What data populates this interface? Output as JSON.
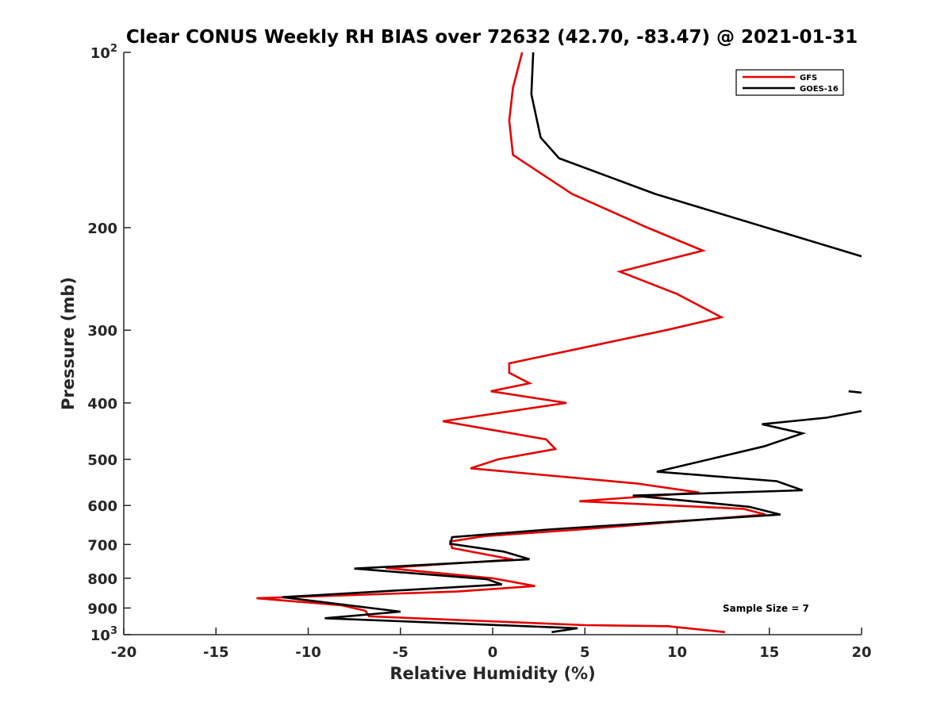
{
  "chart_data": {
    "type": "line",
    "title": "Clear CONUS Weekly RH BIAS over 72632 (42.70, -83.47) @ 2021-01-31",
    "xlabel": "Relative Humidity (%)",
    "ylabel": "Pressure (mb)",
    "xlim": [
      -20,
      20
    ],
    "ylim": [
      100,
      1000
    ],
    "y_scale": "log",
    "y_reversed": true,
    "x_ticks": [
      "-20",
      "-15",
      "-10",
      "-5",
      "0",
      "5",
      "10",
      "15",
      "20"
    ],
    "y_ticks": [
      {
        "value": 100,
        "base": "10",
        "exp": "2"
      },
      {
        "value": 200,
        "label": "200"
      },
      {
        "value": 300,
        "label": "300"
      },
      {
        "value": 400,
        "label": "400"
      },
      {
        "value": 500,
        "label": "500"
      },
      {
        "value": 600,
        "label": "600"
      },
      {
        "value": 700,
        "label": "700"
      },
      {
        "value": 800,
        "label": "800"
      },
      {
        "value": 900,
        "label": "900"
      },
      {
        "value": 1000,
        "base": "10",
        "exp": "3"
      }
    ],
    "grid": false,
    "legend_position": "top-right",
    "annotation": "Sample Size = 7",
    "series": [
      {
        "name": "GFS",
        "color": "#e60000",
        "points": [
          [
            1.6,
            100
          ],
          [
            1.1,
            115
          ],
          [
            0.9,
            131
          ],
          [
            1.1,
            150
          ],
          [
            4.3,
            175
          ],
          [
            8.4,
            200
          ],
          [
            11.4,
            219
          ],
          [
            6.9,
            238
          ],
          [
            10.0,
            260
          ],
          [
            12.4,
            285
          ],
          [
            9.4,
            300
          ],
          [
            0.9,
            342
          ],
          [
            0.9,
            355
          ],
          [
            2.0,
            370
          ],
          [
            -0.1,
            382
          ],
          [
            4.0,
            400
          ],
          [
            -2.7,
            430
          ],
          [
            2.9,
            462
          ],
          [
            3.4,
            480
          ],
          [
            0.3,
            500
          ],
          [
            -1.2,
            518
          ],
          [
            7.8,
            550
          ],
          [
            11.2,
            570
          ],
          [
            4.7,
            590
          ],
          [
            13.6,
            608
          ],
          [
            14.8,
            622
          ],
          [
            4.7,
            660
          ],
          [
            -0.4,
            677
          ],
          [
            -2.3,
            692
          ],
          [
            -2.2,
            710
          ],
          [
            1.1,
            743
          ],
          [
            -5.8,
            768
          ],
          [
            0.0,
            800
          ],
          [
            2.3,
            825
          ],
          [
            -1.9,
            843
          ],
          [
            -12.8,
            866
          ],
          [
            -8.2,
            890
          ],
          [
            -6.9,
            910
          ],
          [
            -6.7,
            930
          ],
          [
            5.0,
            963
          ],
          [
            9.5,
            967
          ],
          [
            12.6,
            990
          ]
        ]
      },
      {
        "name": "GOES-16",
        "color": "#000000",
        "points": [
          [
            2.2,
            100
          ],
          [
            2.1,
            118
          ],
          [
            2.6,
            140
          ],
          [
            3.6,
            152
          ],
          [
            8.8,
            175
          ],
          [
            20.0,
            224
          ],
          null,
          [
            19.3,
            382
          ],
          [
            20.0,
            384
          ],
          null,
          [
            20.0,
            413
          ],
          [
            18.1,
            424
          ],
          [
            14.6,
            435
          ],
          [
            16.8,
            451
          ],
          [
            14.7,
            475
          ],
          [
            8.9,
            525
          ],
          [
            15.4,
            545
          ],
          [
            16.8,
            565
          ],
          [
            7.6,
            577
          ],
          [
            13.9,
            603
          ],
          [
            15.6,
            622
          ],
          [
            3.0,
            660
          ],
          [
            -2.2,
            680
          ],
          [
            -2.3,
            698
          ],
          [
            0.6,
            720
          ],
          [
            2.0,
            742
          ],
          [
            -7.5,
            770
          ],
          [
            -0.3,
            803
          ],
          [
            0.5,
            820
          ],
          [
            -11.4,
            862
          ],
          [
            -5.0,
            913
          ],
          [
            -9.1,
            937
          ],
          [
            4.6,
            975
          ],
          [
            3.2,
            990
          ]
        ]
      }
    ]
  }
}
